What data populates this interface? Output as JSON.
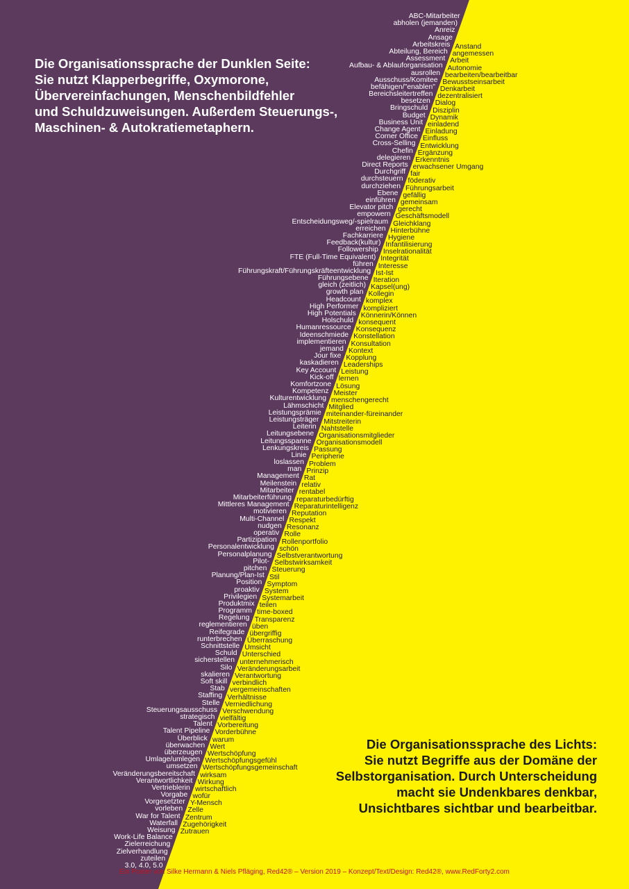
{
  "colors": {
    "dark": "#5c3a5e",
    "light": "#fff200",
    "credit": "#c1121f"
  },
  "dark_heading": [
    "Die Organisationssprache der Dunklen Seite:",
    "Sie nutzt Klapperbegriffe, Oxymorone,",
    "Übervereinfachungen, Menschenbildfehler",
    "und Schuldzuweisungen. Außerdem Steuerungs-,",
    "Maschinen- & Autokratiemetaphern."
  ],
  "light_heading": [
    "Die Organisationssprache des Lichts:",
    "Sie nutzt Begriffe aus der Domäne der",
    "Selbstorganisation. Durch Unterscheidung",
    "macht sie Undenkbares denkbar,",
    "Unsichtbares sichtbar und bearbeitbar."
  ],
  "dark_words": [
    "ABC-Mitarbeiter",
    "abholen (jemanden)",
    "Anreiz",
    "Ansage",
    "Arbeitskreis",
    "Abteilung, Bereich",
    "Assessment",
    "Aufbau- & Ablauforganisation",
    "ausrollen",
    "Ausschuss/Komitee",
    "befähigen/\"enablen\"",
    "Bereichsleitertreffen",
    "besetzen",
    "Bringschuld",
    "Budget",
    "Business Unit",
    "Change Agent",
    "Corner Office",
    "Cross-Selling",
    "Chefin",
    "delegieren",
    "Direct Reports",
    "Durchgriff",
    "durchsteuern",
    "durchziehen",
    "Ebene",
    "einführen",
    "Elevator pitch",
    "empowern",
    "Entscheidungsweg/-spielraum",
    "erreichen",
    "Fachkarriere",
    "Feedback(kultur)",
    "Followership",
    "FTE (Full-Time Equivalent)",
    "führen",
    "Führungskraft/Führungskräfteentwicklung",
    "Führungsebene",
    "gleich (zeitlich)",
    "growth plan",
    "Headcount",
    "High Performer",
    "High Potentials",
    "Holschuld",
    "Humanressource",
    "Ideenschmiede",
    "implementieren",
    "jemand",
    "Jour fixe",
    "kaskadieren",
    "Key Account",
    "Kick-off",
    "Komfortzone",
    "Kompetenz",
    "Kulturentwicklung",
    "Lähmschicht",
    "Leistungsprämie",
    "Leistungsträger",
    "Leiterin",
    "Leitungsebene",
    "Leitungsspanne",
    "Lenkungskreis",
    "Linie",
    "loslassen",
    "man",
    "Management",
    "Meilenstein",
    "Mitarbeiter",
    "Mitarbeiterführung",
    "Mittleres Management",
    "motivieren",
    "Multi-Channel",
    "nudgen",
    "operativ",
    "Partizipation",
    "Personalentwicklung",
    "Personalplanung",
    "Pilot-",
    "pitchen",
    "Planung/Plan-Ist",
    "Position",
    "proaktiv",
    "Privilegien",
    "Produktmix",
    "Programm",
    "Regelung",
    "reglementieren",
    "Reifegrade",
    "runterbrechen",
    "Schnittstelle",
    "Schuld",
    "sicherstellen",
    "Silo",
    "skalieren",
    "Soft skill",
    "Stab",
    "Staffing",
    "Stelle",
    "Steuerungsausschuss",
    "strategisch",
    "Talent",
    "Talent Pipeline",
    "Überblick",
    "überwachen",
    "überzeugen",
    "Umlage/umlegen",
    "umsetzen",
    "Veränderungsbereitschaft",
    "Verantwortlichkeit",
    "Vertrieblerin",
    "Vorgabe",
    "Vorgesetzter",
    "vorleben",
    "War for Talent",
    "Waterfall",
    "Weisung",
    "Work-Life Balance",
    "Zielerreichung",
    "Zielverhandlung",
    "zuteilen",
    "3.0, 4.0, 5.0"
  ],
  "light_words": [
    "Anstand",
    "angemessen",
    "Arbeit",
    "Autonomie",
    "bearbeiten/bearbeitbar",
    "Bewusstseinsarbeit",
    "Denkarbeit",
    "dezentralisiert",
    "Dialog",
    "Disziplin",
    "Dynamik",
    "einladend",
    "Einladung",
    "Einfluss",
    "Entwicklung",
    "Ergänzung",
    "Erkenntnis",
    "erwachsener Umgang",
    "fair",
    "föderativ",
    "Führungsarbeit",
    "gefällig",
    "gemeinsam",
    "gerecht",
    "Geschäftsmodell",
    "Gleichklang",
    "Hinterbühne",
    "Hygiene",
    "Infantilisierung",
    "Inselrationalität",
    "Integrität",
    "Interesse",
    "Ist-Ist",
    "Iteration",
    "Kapsel(ung)",
    "Kollegin",
    "komplex",
    "kompliziert",
    "Könnerin/Können",
    "konsequent",
    "Konsequenz",
    "Konstellation",
    "Konsultation",
    "Kontext",
    "Kopplung",
    "Leaderships",
    "Leistung",
    "lernen",
    "Lösung",
    "Meister",
    "menschengerecht",
    "Mitglied",
    "miteinander-füreinander",
    "Mitstreiterin",
    "Nahtstelle",
    "Organisationsmitglieder",
    "Organisationsmodell",
    "Passung",
    "Peripherie",
    "Problem",
    "Prinzip",
    "Rat",
    "relativ",
    "rentabel",
    "reparaturbedürftig",
    "Reparaturintelligenz",
    "Reputation",
    "Respekt",
    "Resonanz",
    "Rolle",
    "Rollenportfolio",
    "schön",
    "Selbstverantwortung",
    "Selbstwirksamkeit",
    "Steuerung",
    "Stil",
    "Symptom",
    "System",
    "Systemarbeit",
    "teilen",
    "time-boxed",
    "Transparenz",
    "üben",
    "übergriffig",
    "Überraschung",
    "Umsicht",
    "Unterschied",
    "unternehmerisch",
    "Veränderungsarbeit",
    "Verantwortung",
    "verbindlich",
    "vergemeinschaften",
    "Verhältnisse",
    "Verniedlichung",
    "Verschwendung",
    "vielfältig",
    "Vorbereitung",
    "Vorderbühne",
    "warum",
    "Wert",
    "Wertschöpfung",
    "Wertschöpfungsgefühl",
    "Wertschöpfungsgemeinschaft",
    "wirksam",
    "Wirkung",
    "wirtschaftlich",
    "wofür",
    "Y-Mensch",
    "Zelle",
    "Zentrum",
    "Zugehörigkeit",
    "Zutrauen"
  ],
  "credit": "Ein Poster von Silke Hermann & Niels Pfläging, Red42® – Version 2019 – Konzept/Text/Design: Red42®, www.RedForty2.com"
}
